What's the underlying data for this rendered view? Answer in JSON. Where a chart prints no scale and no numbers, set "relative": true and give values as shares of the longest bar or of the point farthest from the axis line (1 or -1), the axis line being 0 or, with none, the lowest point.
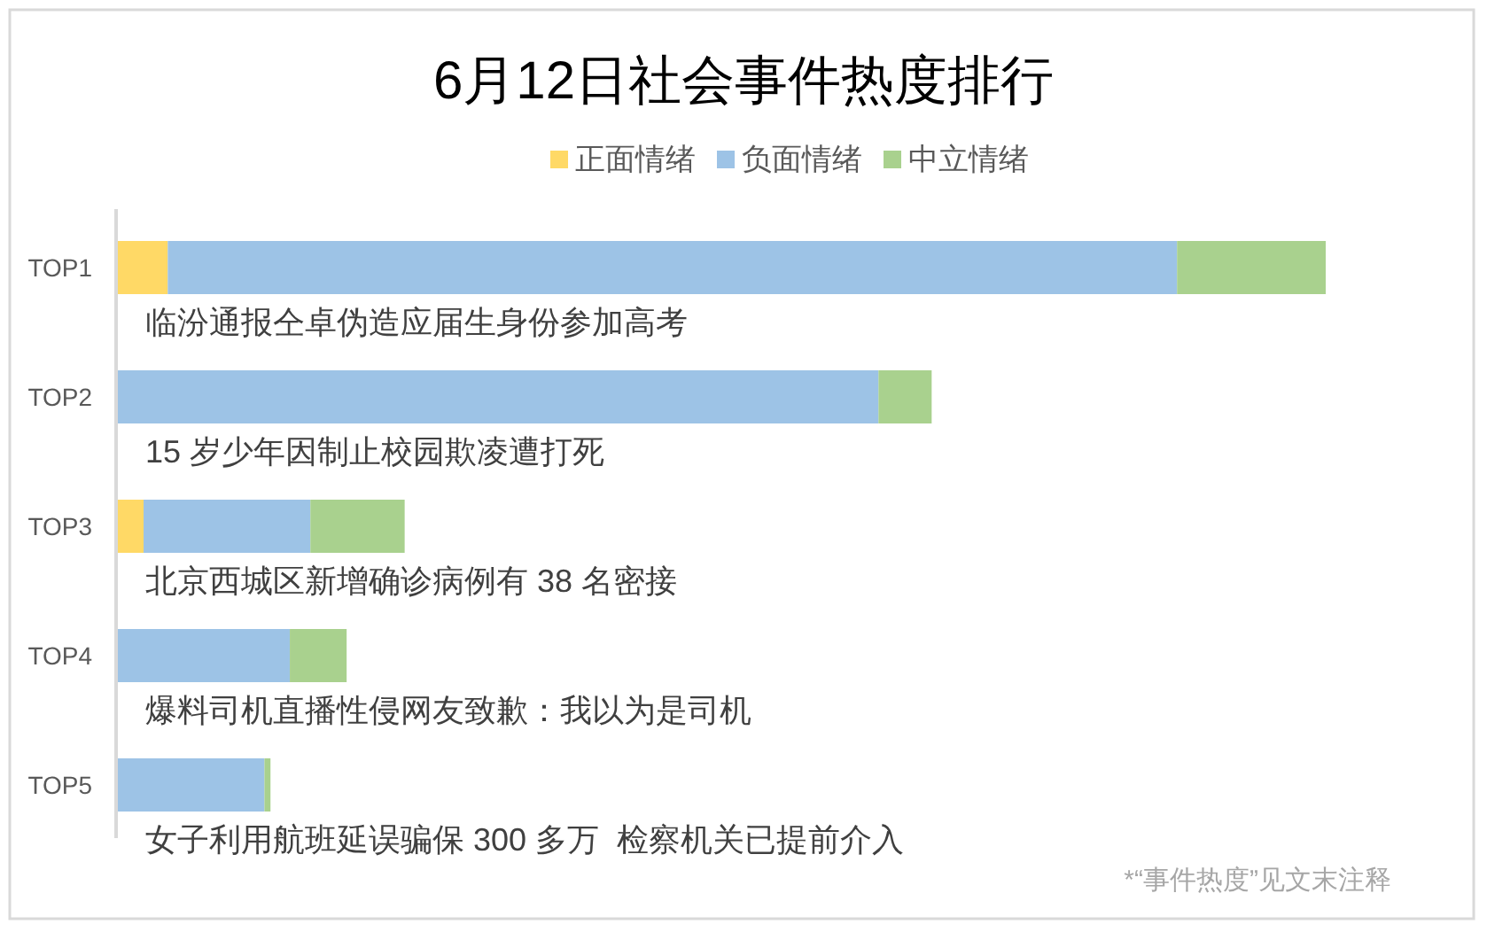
{
  "chart_data": {
    "type": "bar",
    "orientation": "horizontal",
    "stacked": true,
    "relative": true,
    "title": "6月12日社会事件热度排行",
    "categories": [
      "TOP1",
      "TOP2",
      "TOP3",
      "TOP4",
      "TOP5"
    ],
    "series": [
      {
        "name": "正面情绪",
        "color": "#ffd966",
        "values": [
          0.042,
          null,
          0.022,
          null,
          null
        ]
      },
      {
        "name": "负面情绪",
        "color": "#9dc3e6",
        "values": [
          0.835,
          0.63,
          0.138,
          0.143,
          0.122
        ]
      },
      {
        "name": "中立情绪",
        "color": "#a9d18e",
        "values": [
          0.123,
          0.044,
          0.078,
          0.047,
          0.005
        ]
      }
    ],
    "legend": "top",
    "annotations": [
      "临汾通报仝卓伪造应届生身份参加高考",
      "15 岁少年因制止校园欺凌遭打死",
      "北京西城区新增确诊病例有 38 名密接",
      "爆料司机直播性侵网友致歉：我以为是司机",
      "女子利用航班延误骗保 300 多万  检察机关已提前介入",
      "*“事件热度”见文末注释"
    ]
  }
}
